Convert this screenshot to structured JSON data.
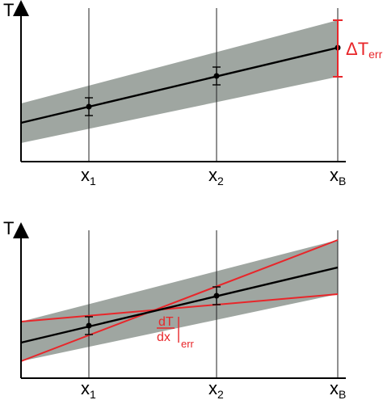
{
  "top": {
    "axis_y": "T",
    "ticks": [
      {
        "main": "x",
        "sub": "1"
      },
      {
        "main": "x",
        "sub": "2"
      },
      {
        "main": "x",
        "sub": "B"
      }
    ],
    "annotation": {
      "main": "ΔT",
      "sub": "err"
    }
  },
  "bottom": {
    "axis_y": "T",
    "ticks": [
      {
        "main": "x",
        "sub": "1"
      },
      {
        "main": "x",
        "sub": "2"
      },
      {
        "main": "x",
        "sub": "B"
      }
    ],
    "annotation": {
      "num": "dT",
      "den": "dx",
      "sub": "err"
    }
  },
  "colors": {
    "band": "#8e9790",
    "error": "#e8262a",
    "line": "#000000"
  }
}
